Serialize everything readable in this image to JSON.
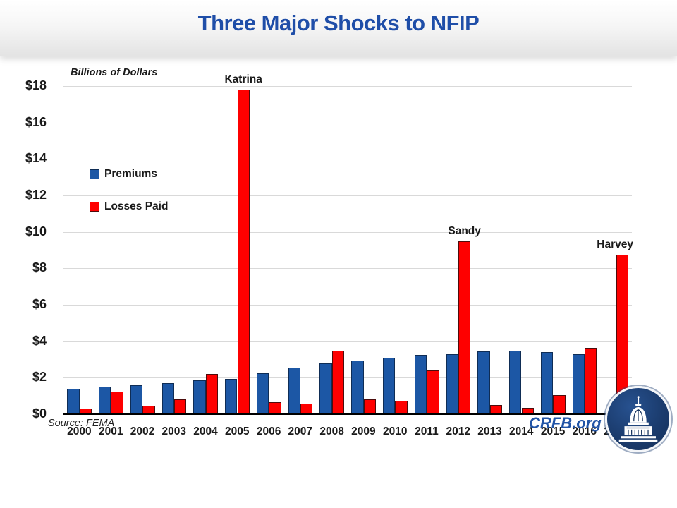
{
  "title": "Three Major Shocks to NFIP",
  "colors": {
    "title_blue": "#1F4EA8",
    "brand_blue": "#2154A6",
    "bar_blue": "#1C57A5",
    "bar_red": "#FE0000"
  },
  "footer": {
    "source": "Source: FEMA",
    "brand": "CRFB.org"
  },
  "chart_data": {
    "type": "bar",
    "title": "Three Major Shocks to NFIP",
    "unit_label": "Billions of Dollars",
    "categories": [
      "2000",
      "2001",
      "2002",
      "2003",
      "2004",
      "2005",
      "2006",
      "2007",
      "2008",
      "2009",
      "2010",
      "2011",
      "2012",
      "2013",
      "2014",
      "2015",
      "2016",
      "2017"
    ],
    "series": [
      {
        "name": "Premiums",
        "color": "#1C57A5",
        "border_color": "#0F2D55",
        "values": [
          1.4,
          1.5,
          1.6,
          1.7,
          1.85,
          1.95,
          2.25,
          2.55,
          2.8,
          2.95,
          3.1,
          3.25,
          3.3,
          3.45,
          3.5,
          3.4,
          3.3,
          null
        ]
      },
      {
        "name": "Losses Paid",
        "color": "#FE0000",
        "border_color": "#4D0C0C",
        "values": [
          0.3,
          1.25,
          0.45,
          0.8,
          2.2,
          17.8,
          0.65,
          0.6,
          3.5,
          0.8,
          0.75,
          2.4,
          9.5,
          0.5,
          0.35,
          1.05,
          3.65,
          8.75
        ]
      }
    ],
    "ylim": [
      0,
      18
    ],
    "ytick_step": 2,
    "ytick_prefix": "$",
    "grid": true,
    "legend_position": "upper-left-inside",
    "annotations": [
      {
        "text": "Katrina",
        "year": "2005"
      },
      {
        "text": "Sandy",
        "year": "2012"
      },
      {
        "text": "Harvey",
        "year": "2017"
      }
    ]
  }
}
